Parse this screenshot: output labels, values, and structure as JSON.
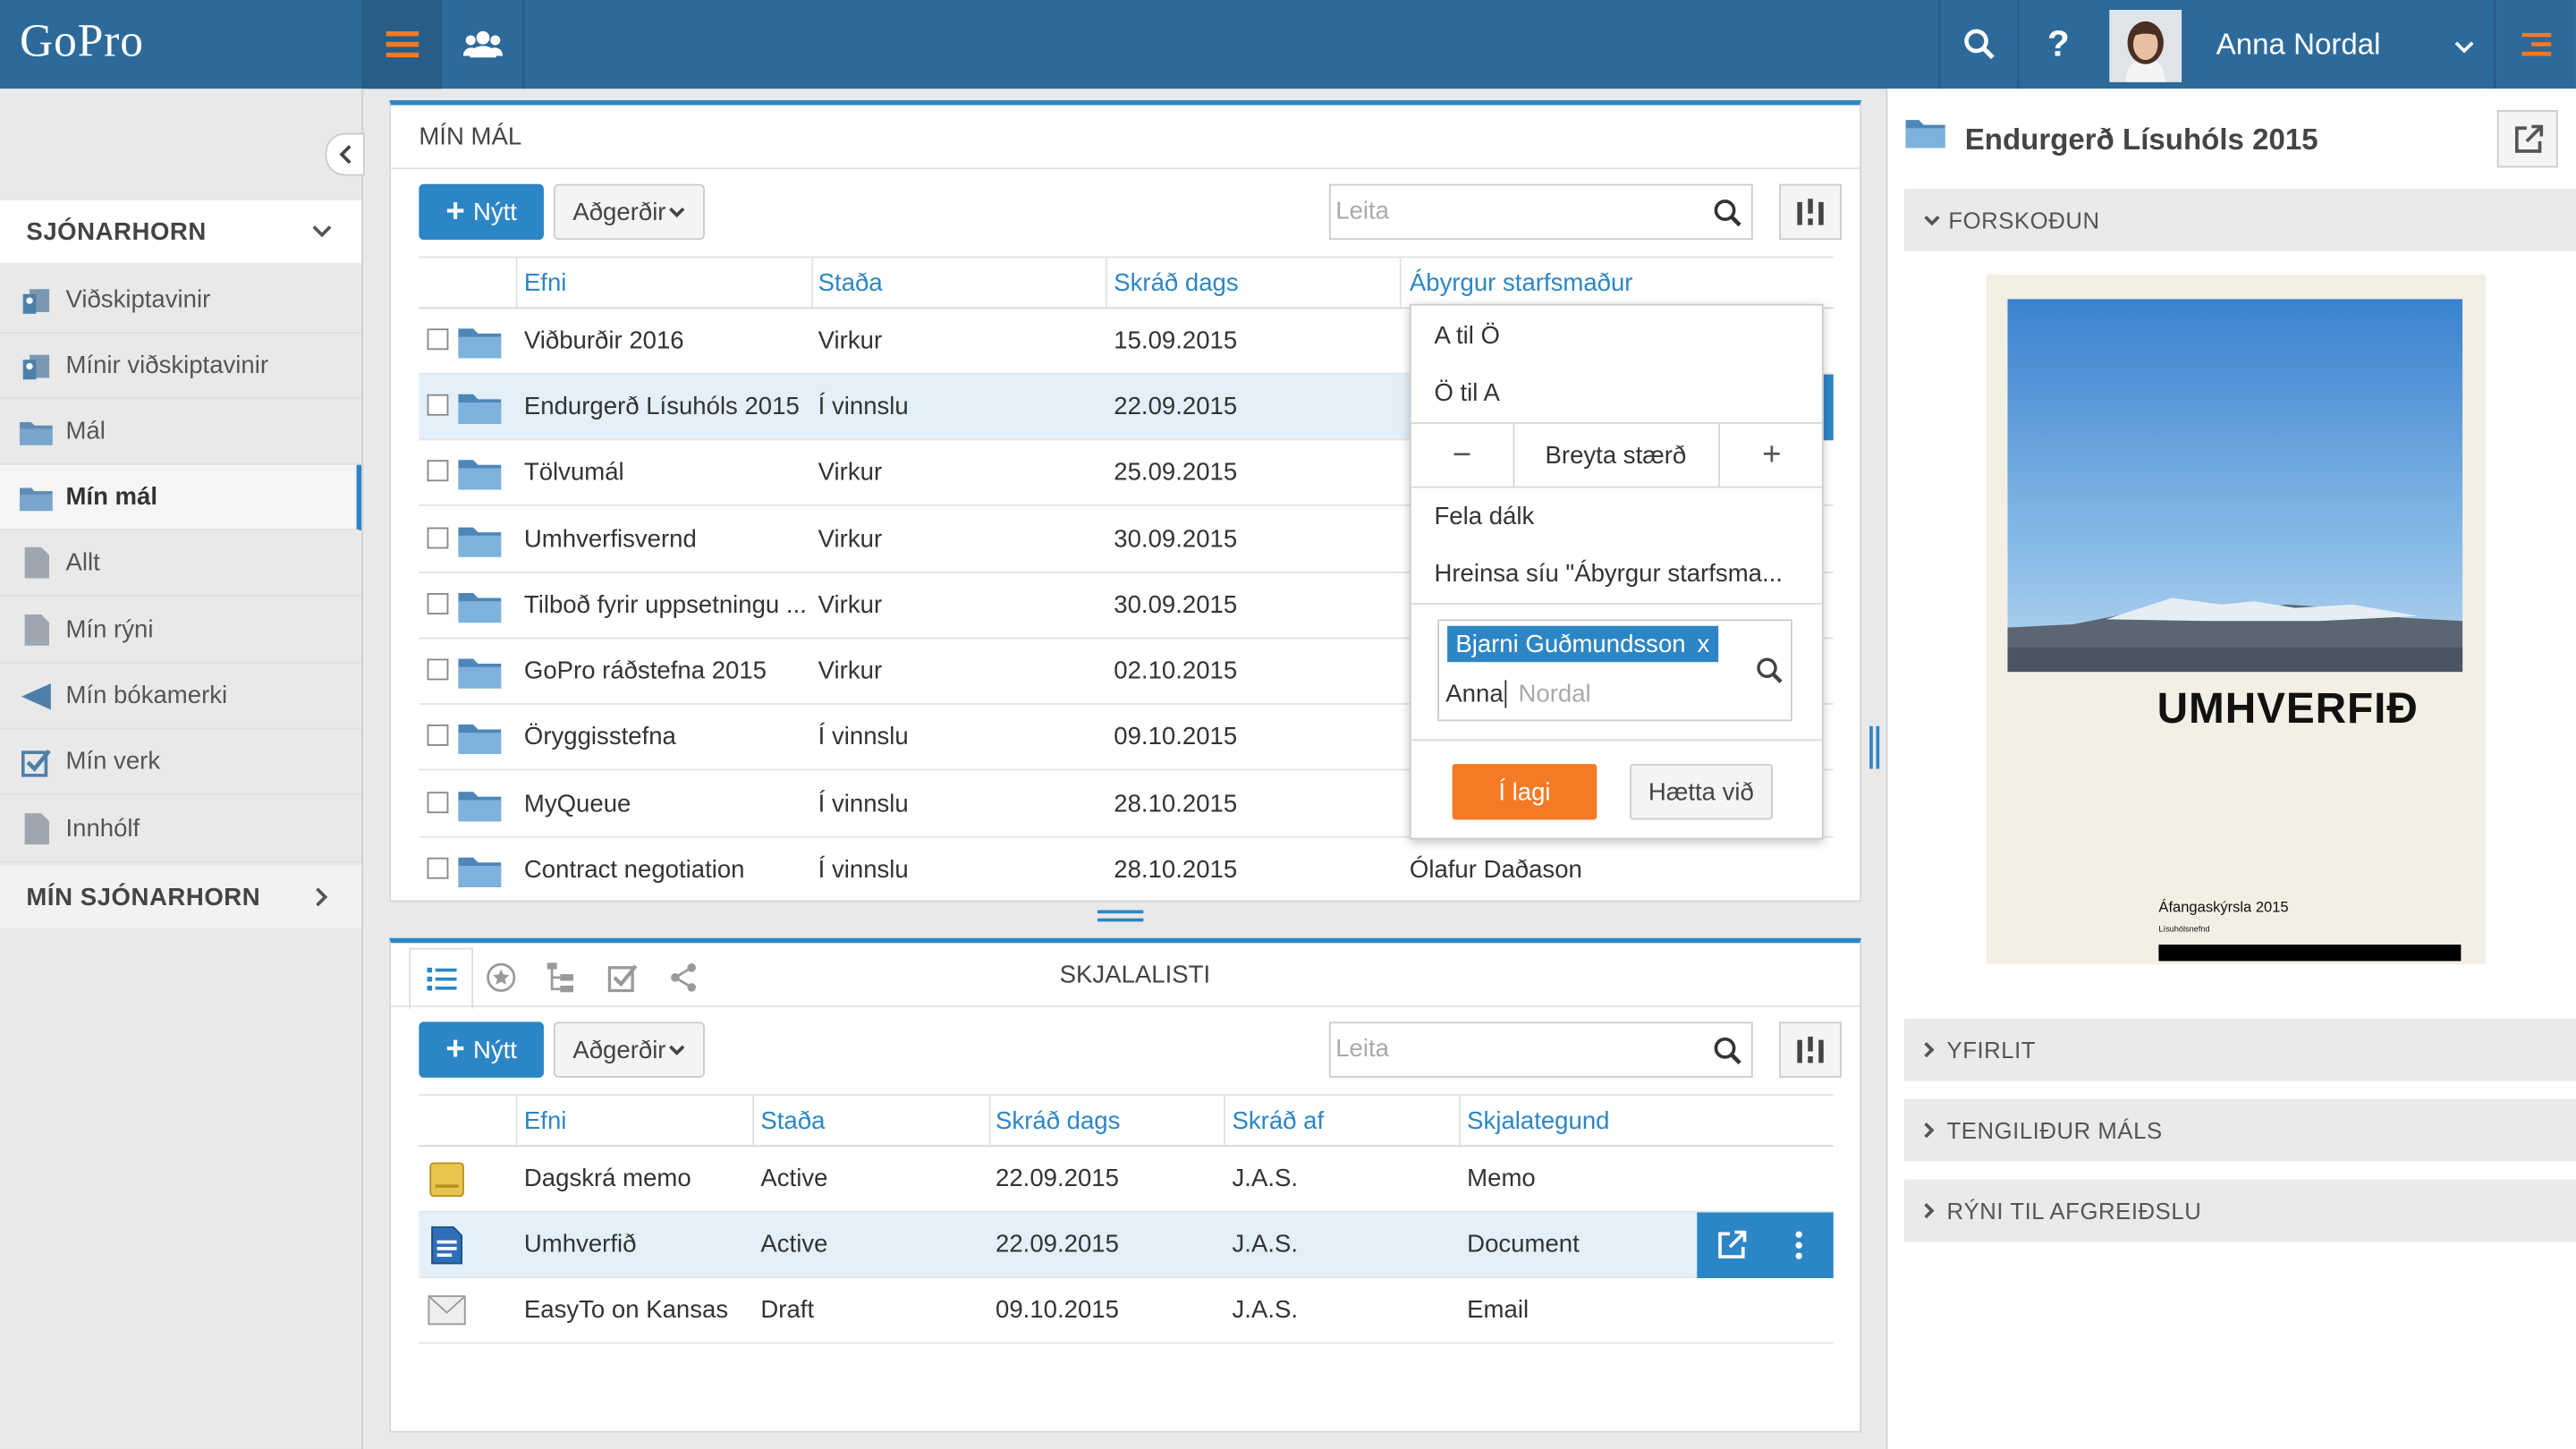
{
  "app": {
    "logo": "GoPro"
  },
  "user": {
    "name": "Anna Nordal"
  },
  "sidebar": {
    "section1_label": "SJÓNARHORN",
    "items": [
      {
        "label": "Viðskiptavinir",
        "icon": "contacts-icon"
      },
      {
        "label": "Mínir viðskiptavinir",
        "icon": "contacts-icon"
      },
      {
        "label": "Mál",
        "icon": "folder-icon"
      },
      {
        "label": "Mín mál",
        "icon": "folder-icon"
      },
      {
        "label": "Allt",
        "icon": "document-icon"
      },
      {
        "label": "Mín rýni",
        "icon": "document-icon"
      },
      {
        "label": "Mín bókamerki",
        "icon": "bookmark-icon"
      },
      {
        "label": "Mín verk",
        "icon": "checkbox-icon"
      },
      {
        "label": "Innhólf",
        "icon": "document-icon"
      }
    ],
    "section2_label": "MÍN SJÓNARHORN"
  },
  "cases": {
    "title": "MÍN MÁL",
    "new_label": "Nýtt",
    "actions_label": "Aðgerðir",
    "search_placeholder": "Leita",
    "columns": [
      "Efni",
      "Staða",
      "Skráð dags",
      "Ábyrgur starfsmaður"
    ],
    "rows": [
      {
        "subject": "Viðburðir 2016",
        "status": "Virkur",
        "date": "15.09.2015",
        "owner": ""
      },
      {
        "subject": "Endurgerð Lísuhóls 2015",
        "status": "Í vinnslu",
        "date": "22.09.2015",
        "owner": ""
      },
      {
        "subject": "Tölvumál",
        "status": "Virkur",
        "date": "25.09.2015",
        "owner": ""
      },
      {
        "subject": "Umhverfisvernd",
        "status": "Virkur",
        "date": "30.09.2015",
        "owner": ""
      },
      {
        "subject": "Tilboð fyrir uppsetningu ...",
        "status": "Virkur",
        "date": "30.09.2015",
        "owner": ""
      },
      {
        "subject": "GoPro ráðstefna 2015",
        "status": "Virkur",
        "date": "02.10.2015",
        "owner": ""
      },
      {
        "subject": "Öryggisstefna",
        "status": "Í vinnslu",
        "date": "09.10.2015",
        "owner": ""
      },
      {
        "subject": "MyQueue",
        "status": "Í vinnslu",
        "date": "28.10.2015",
        "owner": ""
      },
      {
        "subject": "Contract negotiation",
        "status": "Í vinnslu",
        "date": "28.10.2015",
        "owner": "Ólafur Daðason"
      }
    ]
  },
  "column_menu": {
    "sort_asc": "A til Ö",
    "sort_desc": "Ö til A",
    "minus": "−",
    "resize": "Breyta stærð",
    "plus": "+",
    "hide_column": "Fela dálk",
    "clear_filter": "Hreinsa síu \"Ábyrgur starfsma...",
    "filter_tag": "Bjarni Guðmundsson",
    "tag_remove": "x",
    "filter_typed": "Anna",
    "filter_suggestion": "Nordal",
    "ok": "Í lagi",
    "cancel": "Hætta við"
  },
  "docs": {
    "title": "SKJALALISTI",
    "new_label": "Nýtt",
    "actions_label": "Aðgerðir",
    "search_placeholder": "Leita",
    "columns": [
      "Efni",
      "Staða",
      "Skráð dags",
      "Skráð af",
      "Skjalategund"
    ],
    "rows": [
      {
        "subject": "Dagskrá memo",
        "status": "Active",
        "date": "22.09.2015",
        "by": "J.A.S.",
        "type": "Memo",
        "icon": "memo-icon"
      },
      {
        "subject": "Umhverfið",
        "status": "Active",
        "date": "22.09.2015",
        "by": "J.A.S.",
        "type": "Document",
        "icon": "document-icon"
      },
      {
        "subject": "EasyTo on Kansas",
        "status": "Draft",
        "date": "09.10.2015",
        "by": "J.A.S.",
        "type": "Email",
        "icon": "email-icon"
      }
    ]
  },
  "preview": {
    "title": "Endurgerð Lísuhóls 2015",
    "section_preview": "FORSKOÐUN",
    "doc_heading": "UMHVERFIÐ",
    "doc_subtitle": "Áfangaskýrsla 2015",
    "doc_org": "Lísuhólsnefnd",
    "sections": [
      "YFIRLIT",
      "TENGILIÐUR MÁLS",
      "RÝNI TIL AFGREIÐSLU"
    ]
  },
  "colors": {
    "header": "#2d6a99",
    "accent": "#2c86c5",
    "orange": "#f47a26"
  }
}
